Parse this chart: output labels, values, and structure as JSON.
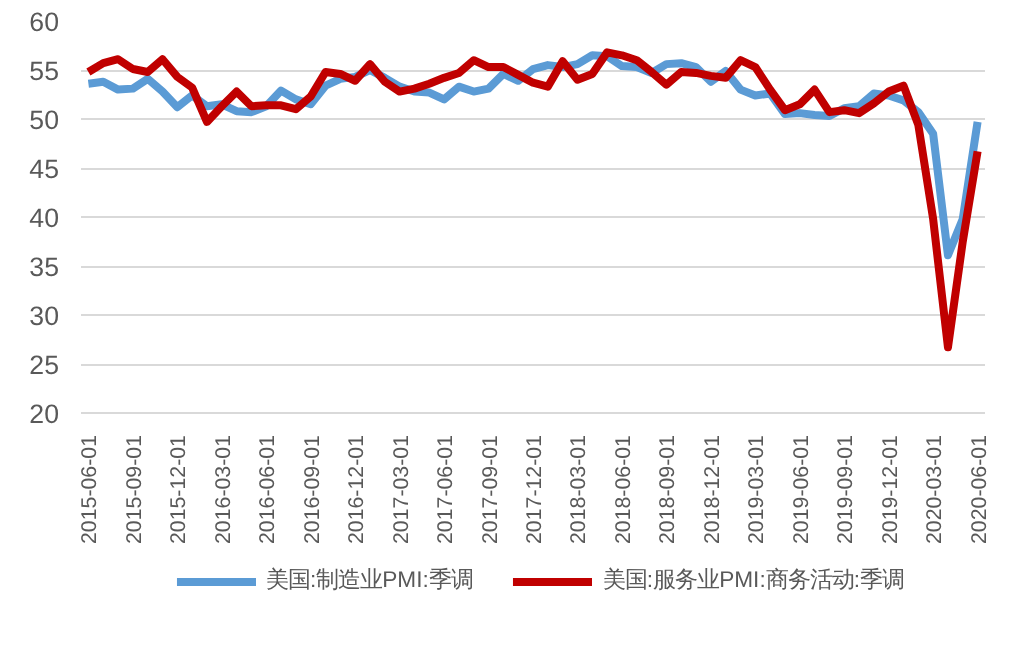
{
  "chart_data": {
    "type": "line",
    "categories": [
      "2015-06-01",
      null,
      null,
      "2015-09-01",
      null,
      null,
      "2015-12-01",
      null,
      null,
      "2016-03-01",
      null,
      null,
      "2016-06-01",
      null,
      null,
      "2016-09-01",
      null,
      null,
      "2016-12-01",
      null,
      null,
      "2017-03-01",
      null,
      null,
      "2017-06-01",
      null,
      null,
      "2017-09-01",
      null,
      null,
      "2017-12-01",
      null,
      null,
      "2018-03-01",
      null,
      null,
      "2018-06-01",
      null,
      null,
      "2018-09-01",
      null,
      null,
      "2018-12-01",
      null,
      null,
      "2019-03-01",
      null,
      null,
      "2019-06-01",
      null,
      null,
      "2019-09-01",
      null,
      null,
      "2019-12-01",
      null,
      null,
      "2020-03-01",
      null,
      null,
      "2020-06-01"
    ],
    "series": [
      {
        "name": "美国:制造业PMI:季调",
        "color": "#5b9bd5",
        "values": [
          53.6,
          53.8,
          53.0,
          53.1,
          54.1,
          52.8,
          51.2,
          52.4,
          51.3,
          51.5,
          50.8,
          50.7,
          51.3,
          52.9,
          52.0,
          51.5,
          53.4,
          54.1,
          54.3,
          55.0,
          54.2,
          53.3,
          52.8,
          52.7,
          52.0,
          53.3,
          52.8,
          53.1,
          54.6,
          53.9,
          55.1,
          55.5,
          55.3,
          55.6,
          56.5,
          56.4,
          55.4,
          55.3,
          54.7,
          55.6,
          55.7,
          55.3,
          53.8,
          54.9,
          53.0,
          52.4,
          52.6,
          50.5,
          50.6,
          50.4,
          50.3,
          51.1,
          51.3,
          52.6,
          52.4,
          51.9,
          50.7,
          48.5,
          36.1,
          39.8,
          49.7
        ]
      },
      {
        "name": "美国:服务业PMI:商务活动:季调",
        "color": "#c00000",
        "values": [
          54.8,
          55.7,
          56.1,
          55.1,
          54.8,
          56.1,
          54.3,
          53.2,
          49.7,
          51.3,
          52.8,
          51.3,
          51.4,
          51.4,
          51.0,
          52.3,
          54.8,
          54.6,
          53.9,
          55.6,
          53.8,
          52.8,
          53.1,
          53.6,
          54.2,
          54.7,
          56.0,
          55.3,
          55.3,
          54.5,
          53.7,
          53.3,
          55.9,
          54.0,
          54.6,
          56.8,
          56.5,
          56.0,
          54.8,
          53.5,
          54.8,
          54.7,
          54.4,
          54.2,
          56.0,
          55.3,
          53.0,
          50.9,
          51.5,
          53.0,
          50.7,
          50.9,
          50.6,
          51.6,
          52.8,
          53.4,
          49.4,
          39.8,
          26.7,
          37.5,
          46.7
        ]
      }
    ],
    "ylim": [
      20,
      60
    ],
    "yticks": [
      20,
      25,
      30,
      35,
      40,
      45,
      50,
      55,
      60
    ],
    "grid": "y",
    "legend": "bottom",
    "line_style": "solid"
  }
}
